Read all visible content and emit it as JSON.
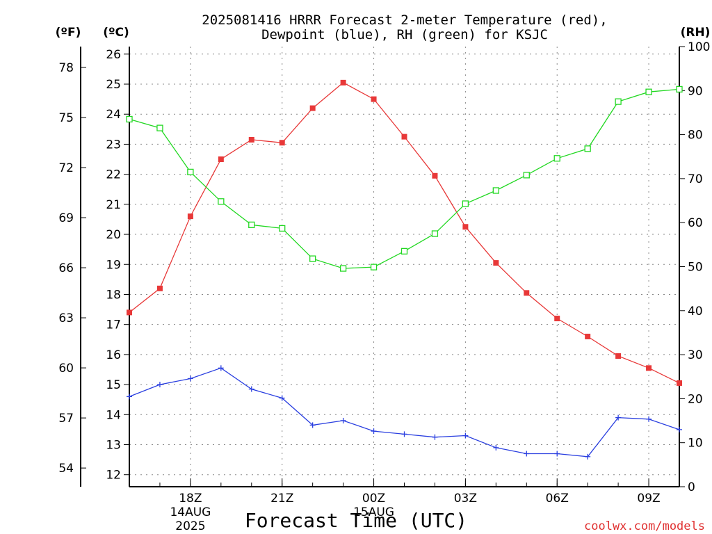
{
  "chart_data": {
    "type": "line",
    "title": "2025081416 HRRR Forecast 2-meter Temperature (red),",
    "subtitle": "Dewpoint (blue), RH (green) for KSJC",
    "xlabel": "Forecast Time (UTC)",
    "credit": "coolwx.com/models",
    "left_axis_f_label": "(ºF)",
    "left_axis_c_label": "(ºC)",
    "right_axis_label": "(RH)",
    "x": [
      "16Z",
      "17Z",
      "18Z",
      "19Z",
      "20Z",
      "21Z",
      "22Z",
      "23Z",
      "00Z",
      "01Z",
      "02Z",
      "03Z",
      "04Z",
      "05Z",
      "06Z",
      "07Z",
      "08Z",
      "09Z",
      "10Z"
    ],
    "x_tick_labels": [
      {
        "label": "18Z",
        "index": 2,
        "sub": [
          "14AUG",
          "2025"
        ]
      },
      {
        "label": "21Z",
        "index": 5,
        "sub": []
      },
      {
        "label": "00Z",
        "index": 8,
        "sub": [
          "15AUG"
        ]
      },
      {
        "label": "03Z",
        "index": 11,
        "sub": []
      },
      {
        "label": "06Z",
        "index": 14,
        "sub": []
      },
      {
        "label": "09Z",
        "index": 17,
        "sub": []
      }
    ],
    "celsius_ticks": [
      12,
      13,
      14,
      15,
      16,
      17,
      18,
      19,
      20,
      21,
      22,
      23,
      24,
      25,
      26
    ],
    "fahrenheit_ticks": [
      54,
      57,
      60,
      63,
      66,
      69,
      72,
      75,
      78
    ],
    "rh_ticks": [
      0,
      10,
      20,
      30,
      40,
      50,
      60,
      70,
      80,
      90,
      100
    ],
    "ylim_c": [
      11.6,
      26.25
    ],
    "ylim_rh": [
      0,
      100
    ],
    "grid": true,
    "series": [
      {
        "name": "Temperature",
        "axis": "celsius",
        "color": "#e83838",
        "marker": "filled-square",
        "values": [
          17.4,
          18.2,
          20.6,
          22.5,
          23.15,
          23.05,
          24.2,
          25.05,
          24.5,
          23.25,
          21.95,
          20.25,
          19.05,
          18.05,
          17.2,
          16.6,
          15.95,
          15.55,
          15.05
        ]
      },
      {
        "name": "Dewpoint",
        "axis": "celsius",
        "color": "#2a3fe0",
        "marker": "plus",
        "values": [
          14.6,
          15.0,
          15.2,
          15.55,
          14.85,
          14.55,
          13.65,
          13.8,
          13.45,
          13.35,
          13.25,
          13.3,
          12.9,
          12.7,
          12.7,
          12.6,
          13.9,
          13.85,
          13.5
        ]
      },
      {
        "name": "RH",
        "axis": "rh",
        "color": "#22d822",
        "marker": "open-square",
        "values": [
          83.5,
          81.5,
          71.5,
          64.8,
          59.5,
          58.7,
          51.8,
          49.6,
          49.9,
          53.5,
          57.5,
          64.3,
          67.3,
          70.8,
          74.6,
          76.8,
          87.5,
          89.7,
          90.3
        ]
      }
    ]
  }
}
